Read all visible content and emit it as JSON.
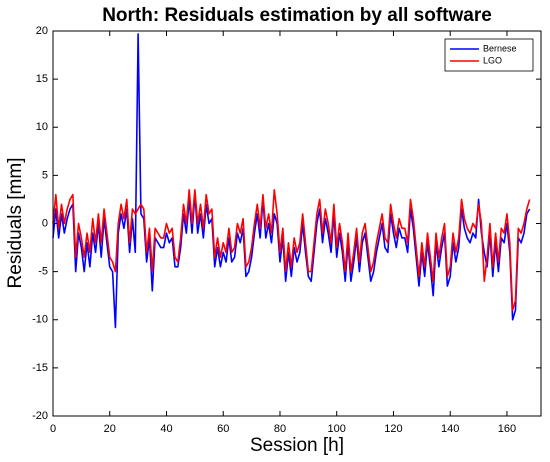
{
  "chart_data": {
    "type": "line",
    "title": "North: Residuals estimation by all software",
    "xlabel": "Session [h]",
    "ylabel": "Residuals [mm]",
    "x": [
      0,
      1,
      2,
      3,
      4,
      5,
      6,
      7,
      8,
      9,
      10,
      11,
      12,
      13,
      14,
      15,
      16,
      17,
      18,
      19,
      20,
      21,
      22,
      23,
      24,
      25,
      26,
      27,
      28,
      29,
      30,
      31,
      32,
      33,
      34,
      35,
      36,
      37,
      38,
      39,
      40,
      41,
      42,
      43,
      44,
      45,
      46,
      47,
      48,
      49,
      50,
      51,
      52,
      53,
      54,
      55,
      56,
      57,
      58,
      59,
      60,
      61,
      62,
      63,
      64,
      65,
      66,
      67,
      68,
      69,
      70,
      71,
      72,
      73,
      74,
      75,
      76,
      77,
      78,
      79,
      80,
      81,
      82,
      83,
      84,
      85,
      86,
      87,
      88,
      89,
      90,
      91,
      92,
      93,
      94,
      95,
      96,
      97,
      98,
      99,
      100,
      101,
      102,
      103,
      104,
      105,
      106,
      107,
      108,
      109,
      110,
      111,
      112,
      113,
      114,
      115,
      116,
      117,
      118,
      119,
      120,
      121,
      122,
      123,
      124,
      125,
      126,
      127,
      128,
      129,
      130,
      131,
      132,
      133,
      134,
      135,
      136,
      137,
      138,
      139,
      140,
      141,
      142,
      143,
      144,
      145,
      146,
      147,
      148,
      149,
      150,
      151,
      152,
      153,
      154,
      155,
      156,
      157,
      158,
      159,
      160,
      161,
      162,
      163,
      164,
      165,
      166,
      167,
      168
    ],
    "series": [
      {
        "name": "Bernese",
        "color": "#0000ff",
        "values": [
          -1.5,
          1.5,
          -1.5,
          1,
          -1,
          0.5,
          1.5,
          2,
          -5,
          -1,
          -2.5,
          -5,
          -2,
          -4.5,
          -1,
          -3,
          0,
          -3.5,
          0.5,
          -2,
          -4.5,
          -5,
          -10.8,
          -1,
          1,
          -0.5,
          1.5,
          -3,
          0.5,
          -3,
          19.7,
          1,
          0.5,
          -4,
          -1.5,
          -7,
          -1.5,
          -2,
          -2.5,
          -2.5,
          -1,
          -2,
          -1.5,
          -4.5,
          -4.5,
          -2.5,
          1,
          -1,
          2.5,
          -1,
          3,
          -1,
          1,
          -1.5,
          2,
          0,
          0.5,
          -4.5,
          -2.5,
          -4.5,
          -3,
          -4,
          -1.5,
          -4,
          -3.5,
          -1,
          -2,
          -0.5,
          -5.5,
          -5,
          -3.5,
          -1,
          1,
          -1.5,
          2.5,
          -1.5,
          0,
          -2,
          1,
          0,
          -4,
          -1.5,
          -6,
          -3,
          -5.5,
          -2.5,
          -4,
          -3,
          0,
          -3,
          -5.5,
          -6,
          -3,
          0,
          1.5,
          -2,
          0.5,
          -1,
          -3,
          1,
          -3.5,
          -1,
          -3,
          -6,
          -2,
          -6,
          -4,
          -1.5,
          -5,
          -2,
          -1,
          -3.5,
          -6,
          -5,
          -3,
          -1.5,
          0,
          -2.5,
          -3,
          1,
          -1,
          -2.5,
          -0.5,
          -1.5,
          -1.5,
          -3,
          1.5,
          -0.5,
          -3.5,
          -6.5,
          -3,
          -5.5,
          -2,
          -4.5,
          -7.5,
          -2,
          -4.5,
          -2.5,
          -1,
          -6.5,
          -5.5,
          -2,
          -4,
          -2.5,
          1.5,
          -0.5,
          -1.5,
          -2,
          -1,
          -1.5,
          2.5,
          -1,
          -3,
          -4.5,
          -1,
          -5.5,
          -2,
          -5,
          -1.5,
          -2,
          0,
          -3,
          -10,
          -9,
          -1.5,
          -2,
          -1,
          1,
          1.5
        ]
      },
      {
        "name": "LGO",
        "color": "#ff0000",
        "values": [
          0,
          3,
          -0.5,
          2,
          0,
          1.5,
          2.5,
          3,
          -3.5,
          0,
          -1.5,
          -3.5,
          -1,
          -3,
          0.5,
          -2,
          1,
          -2,
          1.5,
          -1,
          -3.5,
          -4,
          -5,
          0,
          2,
          0.5,
          2.5,
          -2,
          1.5,
          1,
          1.5,
          2,
          1.5,
          -3,
          -0.5,
          -5,
          -0.5,
          -1,
          -1.5,
          -1.5,
          0,
          -1,
          -0.5,
          -3.5,
          -4,
          -1.5,
          2,
          0,
          3.5,
          0,
          3.5,
          0,
          2,
          -0.5,
          3,
          1,
          1.5,
          -3.5,
          -1.5,
          -3.5,
          -2,
          -3,
          -0.5,
          -3,
          -2.5,
          0,
          -1,
          0.5,
          -4.5,
          -4,
          -2.5,
          0,
          2,
          -0.5,
          3,
          -0.5,
          1,
          -1,
          3.5,
          1,
          -3,
          -0.5,
          -5,
          -2,
          -4.5,
          -1.5,
          -3,
          -2,
          1,
          -2,
          -5,
          -5,
          -2,
          1,
          2.5,
          -1,
          1.5,
          0,
          -2,
          2,
          -2.5,
          0,
          -2,
          -5,
          -1,
          -5,
          -3,
          -0.5,
          -4,
          -1,
          0,
          -2.5,
          -5,
          -4,
          -2,
          -0.5,
          1,
          -1.5,
          -2,
          2,
          0,
          -1.5,
          0.5,
          -0.5,
          -0.5,
          -2,
          2.5,
          0.5,
          -2.5,
          -5.5,
          -2,
          -4.5,
          -1,
          -3.5,
          -6,
          -1,
          -3.5,
          -1.5,
          0,
          -5.5,
          -4.5,
          -1,
          -3,
          -1.5,
          2.5,
          0.5,
          -0.5,
          -1,
          0,
          -0.5,
          2,
          0,
          -6,
          -3.5,
          0,
          -4.5,
          -1,
          -4,
          -0.5,
          -1,
          1,
          -2,
          -9,
          -8,
          -0.5,
          -1,
          0,
          1.5,
          2.5
        ]
      }
    ],
    "xlim": [
      0,
      172
    ],
    "ylim": [
      -20,
      20
    ],
    "xticks": [
      0,
      20,
      40,
      60,
      80,
      100,
      120,
      140,
      160
    ],
    "yticks": [
      -20,
      -15,
      -10,
      -5,
      0,
      5,
      10,
      15,
      20
    ],
    "legend": "upper right"
  }
}
